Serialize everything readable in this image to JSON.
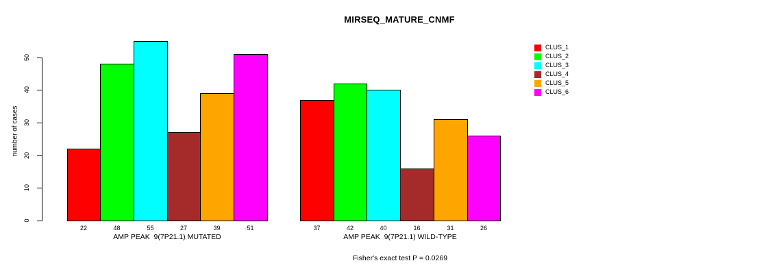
{
  "chart_data": {
    "type": "bar",
    "title": "MIRSEQ_MATURE_CNMF",
    "ylabel": "number of cases",
    "xlabel": "",
    "ylim": [
      0,
      55
    ],
    "yticks": [
      0,
      10,
      20,
      30,
      40,
      50
    ],
    "grid": false,
    "legend_position": "right",
    "series_labels": [
      "CLUS_1",
      "CLUS_2",
      "CLUS_3",
      "CLUS_4",
      "CLUS_5",
      "CLUS_6"
    ],
    "series_colors": [
      "#ff0000",
      "#00ff00",
      "#00ffff",
      "#a52a2a",
      "#ffa500",
      "#ff00ff"
    ],
    "groups": [
      {
        "label": "AMP PEAK  9(7P21.1) MUTATED",
        "values": [
          22,
          48,
          55,
          27,
          39,
          51
        ]
      },
      {
        "label": "AMP PEAK  9(7P21.1) WILD-TYPE",
        "values": [
          37,
          42,
          40,
          16,
          31,
          26
        ]
      }
    ],
    "bar_value_labels_shown": true,
    "annotation": "Fisher's exact test P = 0.0269"
  }
}
